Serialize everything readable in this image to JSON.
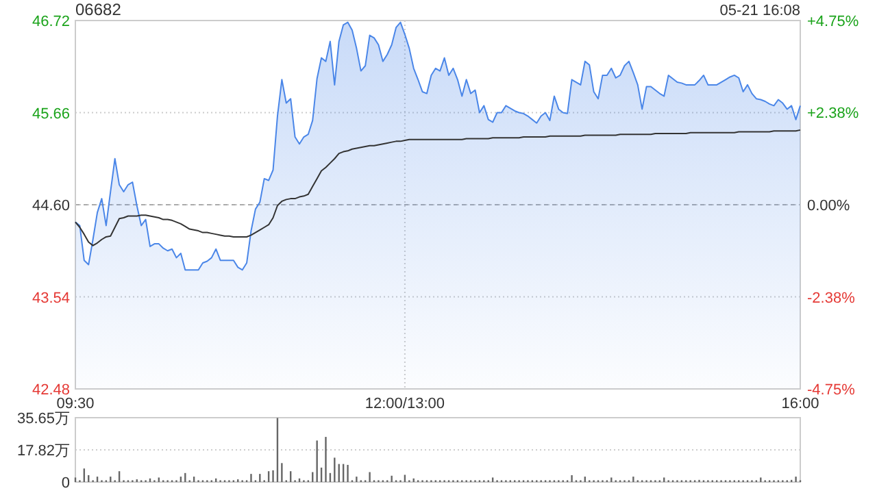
{
  "chart_data": [
    {
      "type": "line",
      "title": "06682",
      "annotations": [
        "05-21 16:08"
      ],
      "categories": [
        "09:30",
        null,
        null,
        null,
        null,
        null,
        null,
        null,
        null,
        null,
        null,
        null,
        null,
        null,
        null,
        null,
        null,
        null,
        null,
        null,
        null,
        null,
        null,
        null,
        null,
        null,
        null,
        null,
        null,
        null,
        null,
        null,
        null,
        null,
        null,
        null,
        null,
        null,
        null,
        null,
        null,
        null,
        null,
        null,
        null,
        null,
        null,
        null,
        null,
        null,
        null,
        null,
        null,
        null,
        null,
        null,
        null,
        null,
        null,
        null,
        null,
        null,
        null,
        null,
        null,
        null,
        null,
        null,
        null,
        null,
        null,
        null,
        null,
        null,
        null,
        "12:00/13:00",
        null,
        null,
        null,
        null,
        null,
        null,
        null,
        null,
        null,
        null,
        null,
        null,
        null,
        null,
        null,
        null,
        null,
        null,
        null,
        null,
        null,
        null,
        null,
        null,
        null,
        null,
        null,
        null,
        null,
        null,
        null,
        null,
        null,
        null,
        null,
        null,
        null,
        null,
        null,
        null,
        null,
        null,
        null,
        null,
        null,
        null,
        null,
        null,
        null,
        null,
        null,
        null,
        null,
        null,
        null,
        null,
        null,
        null,
        null,
        null,
        null,
        null,
        null,
        null,
        null,
        null,
        null,
        null,
        null,
        null,
        null,
        null,
        null,
        null,
        null,
        null,
        null,
        null,
        null,
        null,
        null,
        null,
        null,
        null,
        null,
        null,
        null,
        null,
        null,
        "16:00"
      ],
      "ylim": [
        42.48,
        46.72
      ],
      "yticks": [
        42.48,
        43.54,
        {
          "value": 44.6,
          "label": "44.60"
        },
        45.66,
        46.72
      ],
      "y2lim": [
        -4.75,
        4.75
      ],
      "y2ticks": [
        {
          "value": -4.75,
          "label": "-4.75%"
        },
        {
          "value": -2.38,
          "label": "-2.38%"
        },
        {
          "value": 0,
          "label": "0.00%"
        },
        {
          "value": 2.38,
          "label": "+2.38%"
        },
        {
          "value": 4.75,
          "label": "+4.75%"
        }
      ],
      "grid": true,
      "ref_lines": [
        {
          "axis": "y",
          "value": 44.6
        }
      ],
      "series": [
        {
          "type": "area",
          "color": "#4a86e8",
          "values": [
            44.4,
            44.36,
            43.96,
            43.91,
            44.2,
            44.51,
            44.67,
            44.36,
            44.75,
            45.13,
            44.83,
            44.75,
            44.83,
            44.86,
            44.59,
            44.36,
            44.43,
            44.12,
            44.15,
            44.15,
            44.1,
            44.07,
            44.09,
            43.99,
            44.04,
            43.85,
            43.85,
            43.85,
            43.85,
            43.93,
            43.95,
            43.99,
            44.09,
            43.96,
            43.96,
            43.96,
            43.96,
            43.88,
            43.85,
            43.93,
            44.3,
            44.55,
            44.63,
            44.9,
            44.88,
            45.0,
            45.62,
            46.04,
            45.77,
            45.82,
            45.38,
            45.3,
            45.38,
            45.41,
            45.57,
            46.05,
            46.29,
            46.25,
            46.48,
            45.98,
            46.48,
            46.67,
            46.7,
            46.61,
            46.4,
            46.14,
            46.2,
            46.55,
            46.52,
            46.44,
            46.25,
            46.33,
            46.44,
            46.64,
            46.7,
            46.56,
            46.4,
            46.17,
            46.04,
            45.9,
            45.88,
            46.09,
            46.17,
            46.14,
            46.29,
            46.09,
            46.17,
            46.04,
            45.85,
            46.04,
            45.88,
            45.92,
            45.66,
            45.74,
            45.58,
            45.55,
            45.66,
            45.66,
            45.74,
            45.71,
            45.68,
            45.66,
            45.65,
            45.62,
            45.58,
            45.54,
            45.62,
            45.66,
            45.57,
            45.85,
            45.7,
            45.66,
            45.65,
            46.04,
            46.01,
            45.98,
            46.25,
            46.21,
            45.9,
            45.82,
            46.09,
            46.09,
            46.17,
            46.06,
            46.09,
            46.2,
            46.25,
            46.12,
            45.98,
            45.7,
            45.96,
            45.96,
            45.92,
            45.88,
            45.85,
            46.09,
            46.05,
            46.01,
            46.0,
            45.98,
            45.98,
            45.98,
            46.03,
            46.09,
            45.98,
            45.98,
            45.98,
            46.01,
            46.04,
            46.07,
            46.09,
            46.06,
            45.9,
            45.98,
            45.88,
            45.82,
            45.81,
            45.79,
            45.76,
            45.74,
            45.81,
            45.77,
            45.7,
            45.74,
            45.58,
            45.74
          ]
        },
        {
          "color": "#333333",
          "values": [
            44.4,
            44.34,
            44.26,
            44.17,
            44.13,
            44.16,
            44.2,
            44.23,
            44.24,
            44.34,
            44.44,
            44.45,
            44.47,
            44.47,
            44.47,
            44.48,
            44.48,
            44.47,
            44.46,
            44.45,
            44.43,
            44.43,
            44.42,
            44.4,
            44.38,
            44.35,
            44.32,
            44.31,
            44.3,
            44.28,
            44.28,
            44.27,
            44.26,
            44.25,
            44.24,
            44.24,
            44.23,
            44.23,
            44.23,
            44.23,
            44.25,
            44.28,
            44.31,
            44.34,
            44.37,
            44.45,
            44.59,
            44.64,
            44.66,
            44.67,
            44.67,
            44.69,
            44.7,
            44.72,
            44.81,
            44.9,
            44.99,
            45.03,
            45.08,
            45.13,
            45.19,
            45.21,
            45.22,
            45.24,
            45.25,
            45.26,
            45.27,
            45.28,
            45.28,
            45.29,
            45.3,
            45.31,
            45.32,
            45.33,
            45.33,
            45.34,
            45.35,
            45.35,
            45.35,
            45.35,
            45.35,
            45.35,
            45.35,
            45.35,
            45.35,
            45.35,
            45.35,
            45.35,
            45.35,
            45.36,
            45.36,
            45.36,
            45.36,
            45.36,
            45.36,
            45.37,
            45.37,
            45.37,
            45.37,
            45.37,
            45.37,
            45.37,
            45.38,
            45.38,
            45.38,
            45.38,
            45.38,
            45.38,
            45.39,
            45.39,
            45.39,
            45.39,
            45.39,
            45.39,
            45.39,
            45.39,
            45.4,
            45.4,
            45.4,
            45.4,
            45.4,
            45.4,
            45.4,
            45.4,
            45.41,
            45.41,
            45.41,
            45.41,
            45.41,
            45.41,
            45.41,
            45.41,
            45.42,
            45.42,
            45.42,
            45.42,
            45.42,
            45.42,
            45.42,
            45.42,
            45.43,
            45.43,
            45.43,
            45.43,
            45.43,
            45.43,
            45.43,
            45.43,
            45.43,
            45.43,
            45.43,
            45.44,
            45.44,
            45.44,
            45.44,
            45.44,
            45.44,
            45.44,
            45.44,
            45.45,
            45.45,
            45.45,
            45.45,
            45.45,
            45.45,
            45.46
          ]
        }
      ]
    },
    {
      "type": "bar",
      "categories": [
        null,
        null,
        null,
        null,
        null,
        null,
        null,
        null,
        null,
        null,
        null,
        null,
        null,
        null,
        null,
        null,
        null,
        null,
        null,
        null,
        null,
        null,
        null,
        null,
        null,
        null,
        null,
        null,
        null,
        null,
        null,
        null,
        null,
        null,
        null,
        null,
        null,
        null,
        null,
        null,
        null,
        null,
        null,
        null,
        null,
        null,
        null,
        null,
        null,
        null,
        null,
        null,
        null,
        null,
        null,
        null,
        null,
        null,
        null,
        null,
        null,
        null,
        null,
        null,
        null,
        null,
        null,
        null,
        null,
        null,
        null,
        null,
        null,
        null,
        null,
        null,
        null,
        null,
        null,
        null,
        null,
        null,
        null,
        null,
        null,
        null,
        null,
        null,
        null,
        null,
        null,
        null,
        null,
        null,
        null,
        null,
        null,
        null,
        null,
        null,
        null,
        null,
        null,
        null,
        null,
        null,
        null,
        null,
        null,
        null,
        null,
        null,
        null,
        null,
        null,
        null,
        null,
        null,
        null,
        null,
        null,
        null,
        null,
        null,
        null,
        null,
        null,
        null,
        null,
        null,
        null,
        null,
        null,
        null,
        null,
        null,
        null,
        null,
        null,
        null,
        null,
        null,
        null,
        null,
        null,
        null,
        null,
        null,
        null,
        null,
        null,
        null,
        null,
        null,
        null,
        null,
        null,
        null,
        null,
        null,
        null,
        null,
        null,
        null,
        null,
        null
      ],
      "ylim": [
        0,
        35.65
      ],
      "yticks": [
        0,
        {
          "value": 17.82,
          "label": "17.82万"
        },
        {
          "value": 35.65,
          "label": "35.65万"
        }
      ],
      "grid": "y",
      "tick_labels": "y",
      "series": [
        {
          "color": "#666666",
          "values": [
            2.5,
            1,
            7.5,
            3.8,
            1,
            3,
            1,
            1,
            3,
            1,
            6,
            1,
            1,
            1,
            1.5,
            1,
            1,
            2,
            1,
            2.5,
            1,
            1,
            1,
            1,
            3,
            5,
            1,
            3,
            1,
            1,
            1,
            1,
            2,
            1,
            1,
            1,
            1,
            1.5,
            1,
            1,
            4.5,
            1,
            4.5,
            1,
            6,
            6.5,
            35.5,
            10.5,
            1,
            6,
            1,
            2,
            1,
            1,
            5.5,
            23,
            8,
            25,
            5,
            13.5,
            10,
            10,
            9.5,
            1,
            3,
            1,
            1,
            5.5,
            1,
            1,
            1,
            1,
            3.5,
            1,
            1,
            4,
            1,
            2,
            1,
            1,
            1,
            1,
            1,
            1,
            1,
            1,
            1,
            1,
            1,
            1,
            1,
            1,
            1,
            1,
            1,
            2.5,
            1,
            1,
            1,
            1,
            1,
            1,
            1,
            1,
            1,
            1,
            1,
            1,
            1,
            1,
            1,
            1,
            1,
            3.8,
            1,
            1,
            3,
            1,
            1,
            1,
            1,
            1,
            2.5,
            1,
            1,
            1,
            1,
            3,
            1,
            1,
            1,
            1,
            1,
            1,
            2.5,
            1,
            1,
            1,
            1,
            1,
            1,
            1,
            1.2,
            1,
            1,
            1,
            1,
            1,
            1,
            1,
            1,
            1,
            1,
            1,
            1,
            1,
            2.5,
            1,
            1,
            1,
            1,
            1,
            1,
            1.2,
            3,
            1
          ]
        }
      ]
    }
  ]
}
